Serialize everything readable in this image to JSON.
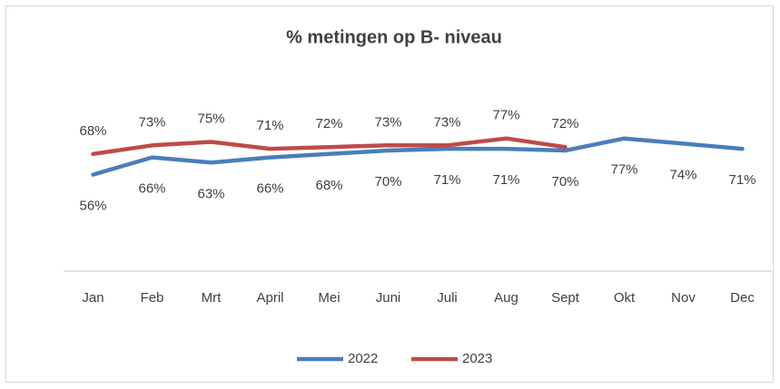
{
  "chart_data": {
    "type": "line",
    "title": "% metingen op B- niveau",
    "categories": [
      "Jan",
      "Feb",
      "Mrt",
      "April",
      "Mei",
      "Juni",
      "Juli",
      "Aug",
      "Sept",
      "Okt",
      "Nov",
      "Dec"
    ],
    "series": [
      {
        "name": "2022",
        "color": "#4a7ebb",
        "values": [
          56,
          66,
          63,
          66,
          68,
          70,
          71,
          71,
          70,
          77,
          74,
          71
        ],
        "value_labels": [
          "56%",
          "66%",
          "63%",
          "66%",
          "68%",
          "70%",
          "71%",
          "71%",
          "70%",
          "77%",
          "74%",
          "71%"
        ]
      },
      {
        "name": "2023",
        "color": "#be4b48",
        "values": [
          68,
          73,
          75,
          71,
          72,
          73,
          73,
          77,
          72,
          null,
          null,
          null
        ],
        "value_labels": [
          "68%",
          "73%",
          "75%",
          "71%",
          "72%",
          "73%",
          "73%",
          "77%",
          "72%",
          null,
          null,
          null
        ]
      }
    ],
    "ylim": [
      0,
      100
    ],
    "legend": "bottom"
  }
}
